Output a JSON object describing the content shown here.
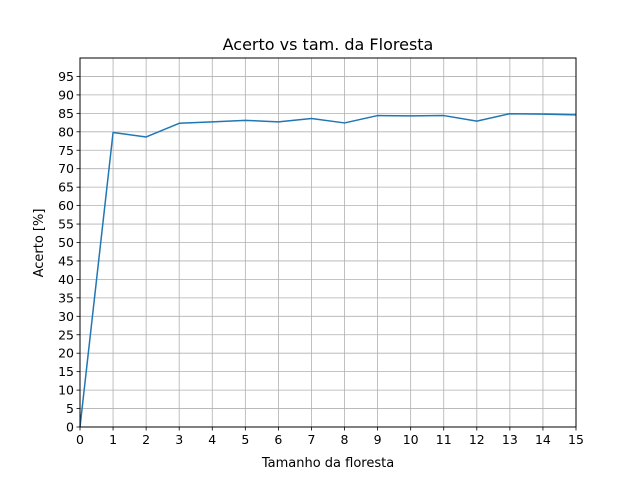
{
  "chart_data": {
    "type": "line",
    "title": "Acerto vs tam. da Floresta",
    "xlabel": "Tamanho da floresta",
    "ylabel": "Acerto [%]",
    "xlim": [
      0,
      15
    ],
    "ylim": [
      0,
      100
    ],
    "xticks": [
      0,
      1,
      2,
      3,
      4,
      5,
      6,
      7,
      8,
      9,
      10,
      11,
      12,
      13,
      14,
      15
    ],
    "yticks": [
      0,
      5,
      10,
      15,
      20,
      25,
      30,
      35,
      40,
      45,
      50,
      55,
      60,
      65,
      70,
      75,
      80,
      85,
      90,
      95
    ],
    "grid": true,
    "colors": {
      "line": "#1f77b4",
      "grid": "#b0b0b0",
      "axis": "#000000"
    },
    "series": [
      {
        "x": [
          0,
          1,
          2,
          3,
          4,
          5,
          6,
          7,
          8,
          9,
          10,
          11,
          12,
          13,
          14,
          15
        ],
        "values": [
          0,
          79.8,
          78.6,
          82.3,
          82.7,
          83.1,
          82.7,
          83.6,
          82.4,
          84.4,
          84.3,
          84.4,
          82.9,
          84.9,
          84.8,
          84.6
        ]
      }
    ]
  }
}
